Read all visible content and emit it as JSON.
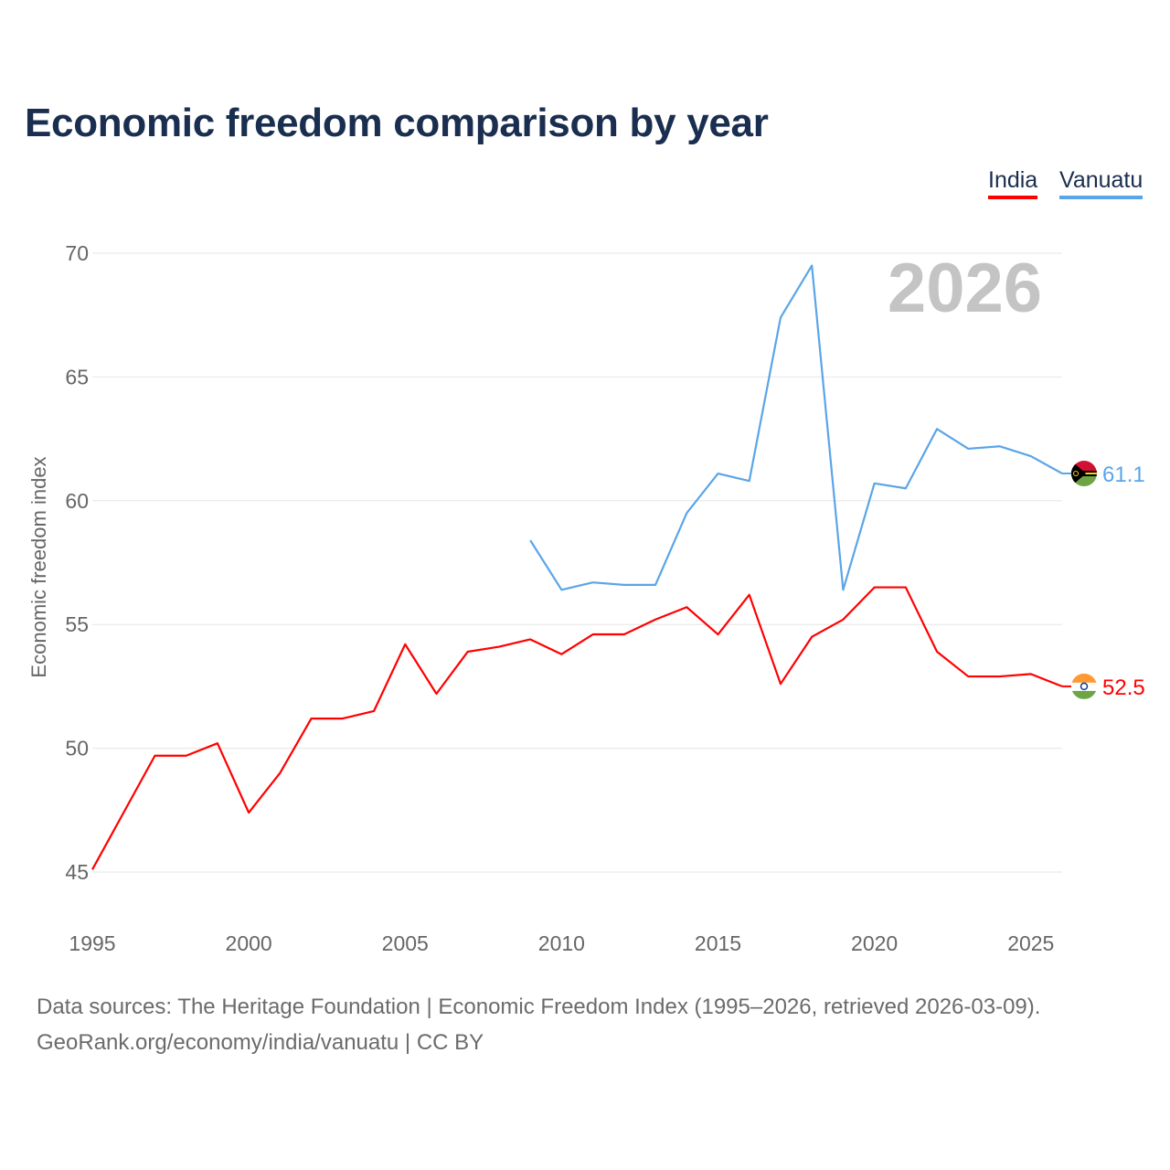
{
  "chart_data": {
    "type": "line",
    "title": "Economic freedom comparison by year",
    "ylabel": "Economic freedom index",
    "xlabel": "",
    "xlim": [
      1995,
      2026
    ],
    "ylim": [
      45,
      70
    ],
    "xticks": [
      1995,
      2000,
      2005,
      2010,
      2015,
      2020,
      2025
    ],
    "yticks": [
      45,
      50,
      55,
      60,
      65,
      70
    ],
    "grid": true,
    "legend_position": "top-right",
    "year_watermark": "2026",
    "series": [
      {
        "name": "India",
        "color": "#ff0000",
        "end_label": "52.5",
        "x": [
          1995,
          1996,
          1997,
          1998,
          1999,
          2000,
          2001,
          2002,
          2003,
          2004,
          2005,
          2006,
          2007,
          2008,
          2009,
          2010,
          2011,
          2012,
          2013,
          2014,
          2015,
          2016,
          2017,
          2018,
          2019,
          2020,
          2021,
          2022,
          2023,
          2024,
          2025,
          2026
        ],
        "values": [
          45.1,
          47.4,
          49.7,
          49.7,
          50.2,
          47.4,
          49.0,
          51.2,
          51.2,
          51.5,
          54.2,
          52.2,
          53.9,
          54.1,
          54.4,
          53.8,
          54.6,
          54.6,
          55.2,
          55.7,
          54.6,
          56.2,
          52.6,
          54.5,
          55.2,
          56.5,
          56.5,
          53.9,
          52.9,
          52.9,
          53.0,
          52.5
        ]
      },
      {
        "name": "Vanuatu",
        "color": "#5aa5e8",
        "end_label": "61.1",
        "x": [
          2009,
          2010,
          2011,
          2012,
          2013,
          2014,
          2015,
          2016,
          2017,
          2018,
          2019,
          2020,
          2021,
          2022,
          2023,
          2024,
          2025,
          2026
        ],
        "values": [
          58.4,
          56.4,
          56.7,
          56.6,
          56.6,
          59.5,
          61.1,
          60.8,
          67.4,
          69.5,
          56.4,
          60.7,
          60.5,
          62.9,
          62.1,
          62.2,
          61.8,
          61.1
        ]
      }
    ]
  },
  "footer": {
    "line1": "Data sources: The Heritage Foundation | Economic Freedom Index (1995–2026, retrieved 2026-03-09).",
    "line2": "GeoRank.org/economy/india/vanuatu | CC BY"
  }
}
